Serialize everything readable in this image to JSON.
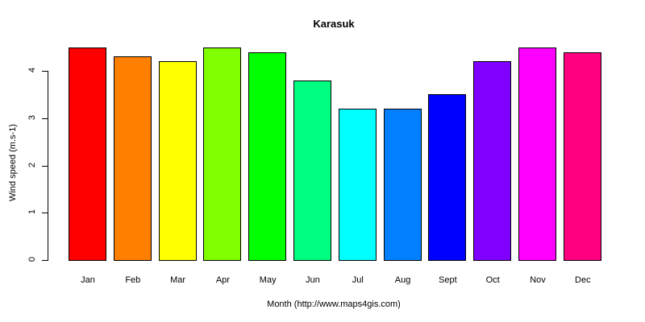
{
  "chart_data": {
    "type": "bar",
    "title": "Karasuk",
    "xlabel": "Month (http://www.maps4gis.com)",
    "ylabel": "Wind speed (m.s-1)",
    "categories": [
      "Jan",
      "Feb",
      "Mar",
      "Apr",
      "May",
      "Jun",
      "Jul",
      "Aug",
      "Sept",
      "Oct",
      "Nov",
      "Dec"
    ],
    "values": [
      4.5,
      4.3,
      4.2,
      4.5,
      4.4,
      3.8,
      3.2,
      3.2,
      3.5,
      4.2,
      4.5,
      4.4
    ],
    "colors": [
      "#FF0000",
      "#FF8000",
      "#FFFF00",
      "#80FF00",
      "#00FF00",
      "#00FF80",
      "#00FFFF",
      "#0080FF",
      "#0000FF",
      "#8000FF",
      "#FF00FF",
      "#FF0080"
    ],
    "ylim": [
      0,
      4.6
    ],
    "yticks": [
      0,
      1,
      2,
      3,
      4
    ],
    "grid": false,
    "legend": null
  }
}
